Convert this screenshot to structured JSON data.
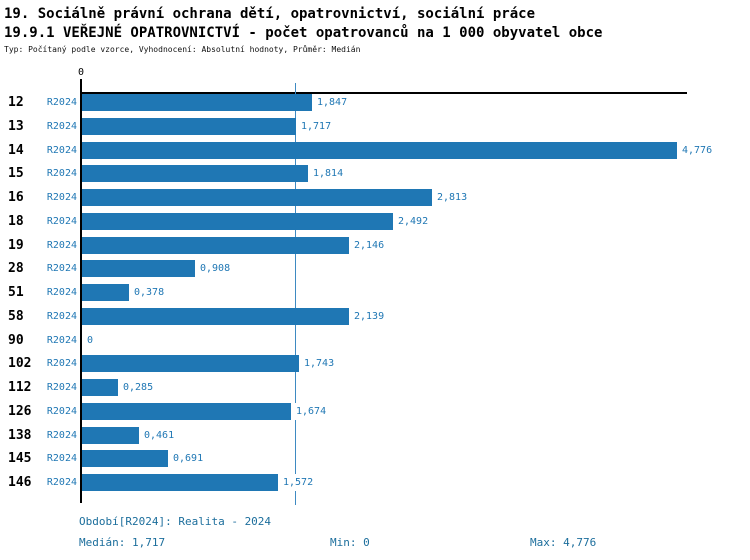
{
  "header": {
    "title_line1": "19. Sociálně právní ochrana dětí, opatrovnictví, sociální práce",
    "title_line2": "19.9.1 VEŘEJNÉ OPATROVNICTVÍ - počet opatrovanců na 1 000 obyvatel obce",
    "subtitle": "Typ: Počítaný podle vzorce, Vyhodnocení: Absolutní hodnoty, Průměr: Medián"
  },
  "colors": {
    "bar": "#1f77b4",
    "accent": "#1f77b4",
    "median_line": "#3e8ac2",
    "legend_text": "#1c6e9c",
    "axis": "#000000"
  },
  "chart_data": {
    "type": "bar",
    "orientation": "horizontal",
    "title": "19.9.1 VEŘEJNÉ OPATROVNICTVÍ - počet opatrovanců na 1 000 obyvatel obce",
    "categories": [
      "12",
      "13",
      "14",
      "15",
      "16",
      "18",
      "19",
      "28",
      "51",
      "58",
      "90",
      "102",
      "112",
      "126",
      "138",
      "145",
      "146"
    ],
    "series": [
      {
        "name": "R2024",
        "values": [
          1.847,
          1.717,
          4.776,
          1.814,
          2.813,
          2.492,
          2.146,
          0.908,
          0.378,
          2.139,
          0,
          1.743,
          0.285,
          1.674,
          0.461,
          0.691,
          1.572
        ]
      }
    ],
    "value_labels": [
      "1,847",
      "1,717",
      "4,776",
      "1,814",
      "2,813",
      "2,492",
      "2,146",
      "0,908",
      "0,378",
      "2,139",
      "0",
      "1,743",
      "0,285",
      "1,674",
      "0,461",
      "0,691",
      "1,572"
    ],
    "zero_tick_label": "0",
    "xlim": [
      0,
      4.85
    ],
    "grid": false,
    "legend_position": "none",
    "median_line_value": 1.717,
    "stats": {
      "median": 1.717,
      "min": 0,
      "max": 4.776
    }
  },
  "footer": {
    "period": "Období[R2024]: Realita - 2024",
    "median": "Medián: 1,717",
    "min": "Min: 0",
    "max": "Max: 4,776"
  }
}
